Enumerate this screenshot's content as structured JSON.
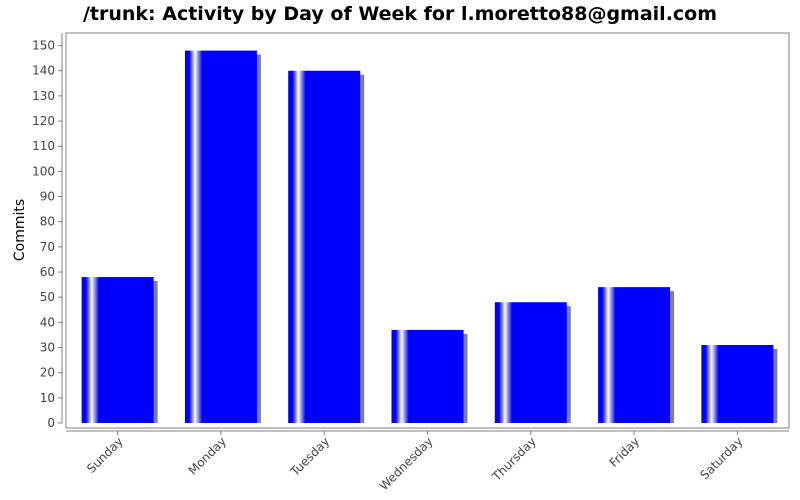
{
  "chart_data": {
    "type": "bar",
    "title": "/trunk: Activity by Day of Week for l.moretto88@gmail.com",
    "xlabel": "",
    "ylabel": "Commits",
    "categories": [
      "Sunday",
      "Monday",
      "Tuesday",
      "Wednesday",
      "Thursday",
      "Friday",
      "Saturday"
    ],
    "values": [
      58,
      148,
      140,
      37,
      48,
      54,
      31
    ],
    "ylim": [
      0,
      155
    ],
    "yticks": [
      "0",
      "10",
      "20",
      "30",
      "40",
      "50",
      "60",
      "70",
      "80",
      "90",
      "100",
      "110",
      "120",
      "130",
      "140",
      "150"
    ],
    "grid": false,
    "legend": "none",
    "colors": {
      "bar": "#0000ff",
      "bar_highlight": "#ffffff",
      "shadow": "#808080",
      "axis": "#808080",
      "tick_label": "#444444",
      "axis_label": "#000000"
    }
  }
}
